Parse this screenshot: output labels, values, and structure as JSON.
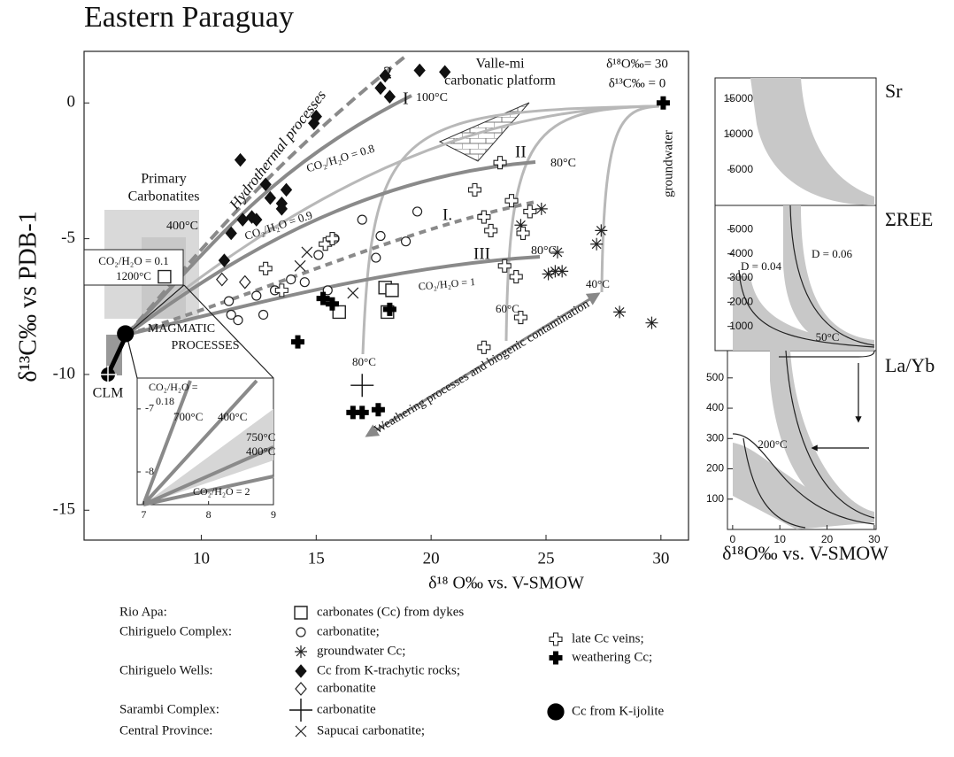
{
  "chart_data": [
    {
      "type": "scatter",
      "title": "Eastern Paraguay",
      "x_label": "δ¹⁸ O‰ vs. V-SMOW",
      "y_label": "δ¹³C‰ vs PDB-1",
      "xlim": [
        4.9,
        31.2
      ],
      "ylim": [
        -16.1,
        1.9
      ],
      "xticks": [
        10,
        15,
        20,
        25,
        30
      ],
      "yticks": [
        0,
        -5,
        -10,
        -15
      ],
      "grid": false,
      "legend_groups": [
        "Rio Apa:",
        "Chiriguelo Complex:",
        "Chiriguelo Wells:",
        "Sarambi Complex:",
        "Central Province:"
      ],
      "series": [
        {
          "name": "carbonates (Cc) from dykes",
          "marker": "square",
          "color": "#222222",
          "x": [
            8.4,
            16.0,
            18.0,
            18.3,
            18.1
          ],
          "values": [
            -6.4,
            -7.7,
            -6.8,
            -6.9,
            -7.7
          ]
        },
        {
          "name": "carbonatite;",
          "marker": "circle",
          "color": "#222222",
          "x": [
            11.3,
            11.6,
            12.4,
            12.7,
            13.2,
            13.9,
            14.5,
            15.1,
            15.8,
            17.0,
            17.8,
            17.6,
            18.9,
            19.4,
            15.5,
            11.2
          ],
          "values": [
            -7.8,
            -8.0,
            -7.1,
            -7.8,
            -6.9,
            -6.5,
            -6.6,
            -5.6,
            -5.0,
            -4.3,
            -4.9,
            -5.7,
            -5.1,
            -4.0,
            -6.9,
            -7.3
          ]
        },
        {
          "name": "groundwater Cc;",
          "marker": "asterisk",
          "color": "#222222",
          "x": [
            24.8,
            23.9,
            25.5,
            25.4,
            25.7,
            27.4,
            27.2,
            28.2,
            29.6,
            25.1
          ],
          "values": [
            -3.9,
            -4.5,
            -5.5,
            -6.2,
            -6.2,
            -4.7,
            -5.2,
            -7.7,
            -8.1,
            -6.3
          ]
        },
        {
          "name": "Cc from K-trachytic rocks;",
          "marker": "diamond-filled",
          "color": "#111111",
          "x": [
            11.0,
            11.3,
            11.7,
            11.8,
            12.2,
            12.4,
            12.8,
            13.0,
            13.5,
            13.5,
            13.7,
            14.9,
            15.0,
            17.8,
            18.2,
            19.5,
            20.6,
            18.0
          ],
          "values": [
            -5.8,
            -4.8,
            -2.1,
            -4.3,
            -4.2,
            -4.3,
            -3.0,
            -3.5,
            -3.7,
            -3.9,
            -3.2,
            -0.75,
            -0.5,
            0.55,
            0.23,
            1.2,
            1.14,
            1.0
          ]
        },
        {
          "name": "carbonatite",
          "marker": "diamond-open",
          "color": "#222222",
          "x": [
            10.9,
            11.9
          ],
          "values": [
            -6.5,
            -6.6
          ]
        },
        {
          "name": "carbonatite",
          "marker": "plus-thin",
          "color": "#111111",
          "x": [
            17.0
          ],
          "values": [
            -10.4
          ]
        },
        {
          "name": "Sapucai carbonatite;",
          "marker": "x",
          "color": "#222222",
          "x": [
            14.6,
            14.3,
            16.6
          ],
          "values": [
            -5.5,
            -6.0,
            -7.0
          ]
        },
        {
          "name": "late Cc veins;",
          "marker": "cross-open",
          "color": "#222222",
          "x": [
            12.8,
            13.5,
            15.4,
            15.7,
            23.0,
            21.9,
            22.3,
            23.5,
            24.3,
            24.0,
            23.2,
            23.7,
            23.9,
            22.3,
            22.6
          ],
          "values": [
            -6.1,
            -6.9,
            -5.2,
            -5.0,
            -2.2,
            -3.2,
            -4.2,
            -3.6,
            -4.0,
            -4.8,
            -6.0,
            -6.4,
            -7.9,
            -9.0,
            -4.7
          ]
        },
        {
          "name": "weathering Cc;",
          "marker": "cross-filled",
          "color": "#000000",
          "x": [
            30.1,
            15.3,
            15.7,
            18.2,
            14.2,
            16.6,
            17.0,
            17.7
          ],
          "values": [
            0.0,
            -7.2,
            -7.4,
            -7.6,
            -8.8,
            -11.4,
            -11.4,
            -11.3
          ]
        },
        {
          "name": "Cc from K-ijolite",
          "marker": "circle-big",
          "color": "#000000",
          "x": [
            6.7
          ],
          "values": [
            -8.5
          ]
        }
      ],
      "annotations": [
        "Valle-mi",
        "carbonatic platform",
        "δ¹⁸O‰= 30",
        "δ¹³C‰ = 0",
        "2",
        "I",
        "100°C",
        "Hydrothermal processes",
        "CO₂/H₂O = 0.8",
        "II",
        "80°C",
        "CO₂/H₂O = 0.9",
        "I.",
        "III",
        "80°C",
        "CO₂/H₂O = 1",
        "40°C",
        "60°C",
        "80°C",
        "groundwater",
        "Primary",
        "Carbonatites",
        "400°C",
        "CO₂/H₂O = 0.1",
        "1200°C",
        "MAGMATIC",
        "PROCESSES",
        "CLM",
        "Weathering processes and biogenic contamination"
      ],
      "inset": {
        "xlim": [
          6.9,
          9
        ],
        "ylim": [
          -8.52,
          -6.51
        ],
        "xticks": [
          7,
          8,
          9
        ],
        "yticks": [
          -7,
          -8
        ],
        "annotations": [
          "CO₂/H₂O =",
          "0.18",
          "700°C",
          "400°C",
          "750°C",
          "400°C",
          "CO₂/H₂O = 2"
        ]
      }
    },
    {
      "type": "line",
      "title": "Sr",
      "xlim": [
        -1.1,
        30.4
      ],
      "ylim": [
        0,
        18000
      ],
      "yticks": [
        5000,
        10000,
        15000
      ]
    },
    {
      "type": "line",
      "title": "ΣREE",
      "xlim": [
        -1.1,
        30.4
      ],
      "ylim": [
        0,
        6000
      ],
      "yticks": [
        1000,
        2000,
        3000,
        4000,
        5000
      ],
      "annotations": [
        "D = 0.04",
        "D = 0.06"
      ]
    },
    {
      "type": "line",
      "title": "La/Yb",
      "x_label": "δ¹⁸O‰ vs. V-SMOW",
      "xlim": [
        -1.1,
        30.4
      ],
      "ylim": [
        0,
        590
      ],
      "xticks": [
        0,
        10,
        20,
        30
      ],
      "yticks": [
        100,
        200,
        300,
        400,
        500
      ],
      "annotations": [
        "50°C",
        "200°C"
      ]
    }
  ]
}
